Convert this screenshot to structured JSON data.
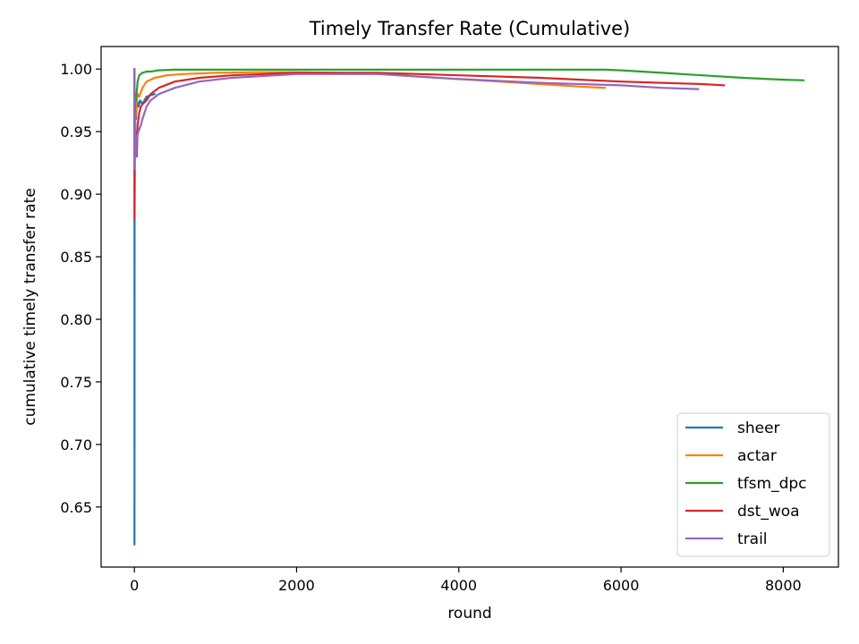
{
  "chart_data": {
    "type": "line",
    "title": "Timely Transfer Rate (Cumulative)",
    "xlabel": "round",
    "ylabel": "cumulative timely transfer rate",
    "xlim": [
      -410,
      8680
    ],
    "ylim": [
      0.602,
      1.018
    ],
    "xticks": [
      0,
      2000,
      4000,
      6000,
      8000
    ],
    "xtick_labels": [
      "0",
      "2000",
      "4000",
      "6000",
      "8000"
    ],
    "yticks": [
      0.65,
      0.7,
      0.75,
      0.8,
      0.85,
      0.9,
      0.95,
      1.0
    ],
    "ytick_labels": [
      "0.65",
      "0.70",
      "0.75",
      "0.80",
      "0.85",
      "0.90",
      "0.95",
      "1.00"
    ],
    "grid": false,
    "legend_position": "lower-right",
    "series": [
      {
        "name": "sheer",
        "color": "#1f77b4",
        "x": [
          1,
          2,
          3,
          5,
          8,
          12,
          20,
          30,
          50,
          70,
          100,
          150,
          250
        ],
        "y": [
          1.0,
          0.62,
          0.88,
          0.95,
          0.93,
          0.97,
          0.96,
          0.975,
          0.97,
          0.975,
          0.972,
          0.978,
          0.98
        ]
      },
      {
        "name": "actar",
        "color": "#ff7f0e",
        "x": [
          1,
          5,
          10,
          20,
          40,
          60,
          100,
          150,
          250,
          400,
          600,
          1000,
          1500,
          2000,
          2500,
          3000,
          3500,
          4000,
          4500,
          5000,
          5500,
          5800
        ],
        "y": [
          0.98,
          0.95,
          0.96,
          0.97,
          0.98,
          0.978,
          0.985,
          0.99,
          0.993,
          0.995,
          0.996,
          0.997,
          0.9975,
          0.9975,
          0.997,
          0.9965,
          0.994,
          0.992,
          0.99,
          0.988,
          0.986,
          0.985
        ]
      },
      {
        "name": "tfsm_dpc",
        "color": "#2ca02c",
        "x": [
          1,
          5,
          10,
          20,
          40,
          60,
          80,
          100,
          150,
          200,
          300,
          500,
          1000,
          2000,
          3000,
          4000,
          5000,
          5800,
          6000,
          6500,
          7000,
          7500,
          8000,
          8250
        ],
        "y": [
          1.0,
          0.96,
          0.98,
          0.975,
          0.99,
          0.995,
          0.996,
          0.997,
          0.998,
          0.998,
          0.999,
          0.9995,
          0.9995,
          0.9995,
          0.9995,
          0.9995,
          0.9995,
          0.9995,
          0.999,
          0.997,
          0.995,
          0.993,
          0.9915,
          0.991
        ]
      },
      {
        "name": "dst_woa",
        "color": "#d62728",
        "x": [
          1,
          3,
          5,
          10,
          20,
          30,
          40,
          60,
          80,
          100,
          150,
          200,
          300,
          500,
          800,
          1200,
          2000,
          3000,
          4000,
          5000,
          6000,
          6500,
          7000,
          7270
        ],
        "y": [
          0.97,
          0.88,
          0.93,
          0.94,
          0.95,
          0.93,
          0.955,
          0.965,
          0.97,
          0.972,
          0.975,
          0.98,
          0.985,
          0.99,
          0.993,
          0.995,
          0.997,
          0.997,
          0.995,
          0.993,
          0.99,
          0.989,
          0.988,
          0.987
        ]
      },
      {
        "name": "trail",
        "color": "#9467bd",
        "x": [
          1,
          3,
          5,
          10,
          20,
          30,
          50,
          80,
          100,
          150,
          200,
          300,
          500,
          800,
          1200,
          2000,
          3000,
          4000,
          5000,
          6000,
          6500,
          6950
        ],
        "y": [
          1.0,
          0.92,
          0.94,
          0.95,
          0.93,
          0.945,
          0.95,
          0.955,
          0.96,
          0.97,
          0.975,
          0.98,
          0.985,
          0.99,
          0.993,
          0.996,
          0.996,
          0.992,
          0.989,
          0.987,
          0.985,
          0.984
        ]
      }
    ]
  }
}
